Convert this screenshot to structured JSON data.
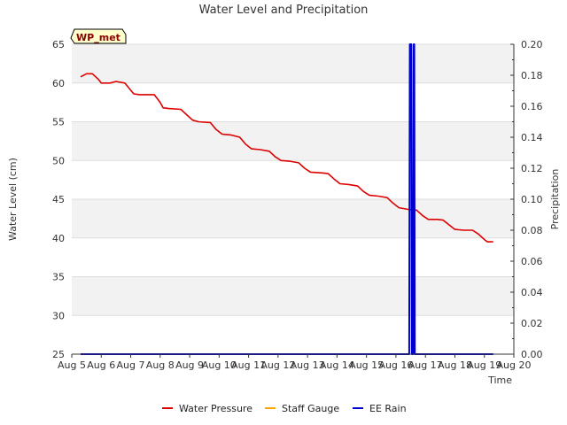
{
  "chart_data": {
    "type": "line",
    "title": "Water Level and Precipitation",
    "badge": "WP_met",
    "xlabel": "Time",
    "ylabel_left": "Water Level (cm)",
    "ylabel_right": "Precipitation",
    "x_ticks": [
      "Aug 5",
      "Aug 6",
      "Aug 7",
      "Aug 8",
      "Aug 9",
      "Aug 10",
      "Aug 11",
      "Aug 12",
      "Aug 13",
      "Aug 14",
      "Aug 15",
      "Aug 16",
      "Aug 17",
      "Aug 18",
      "Aug 19",
      "Aug 20"
    ],
    "xlim": [
      5,
      20
    ],
    "ylim_left": [
      25,
      65
    ],
    "ylim_right": [
      0.0,
      0.2
    ],
    "y_ticks_left": [
      "25",
      "30",
      "35",
      "40",
      "45",
      "50",
      "55",
      "60",
      "65"
    ],
    "y_ticks_right": [
      "0.00",
      "0.02",
      "0.04",
      "0.06",
      "0.08",
      "0.10",
      "0.12",
      "0.14",
      "0.16",
      "0.18",
      "0.20"
    ],
    "grid": true,
    "legend_position": "bottom",
    "colors": {
      "water_pressure": "#dd0000",
      "staff_gauge": "#ffa500",
      "ee_rain": "#0000cc",
      "band": "#f2f2f2",
      "badge_bg": "#ffffcc"
    },
    "series": [
      {
        "name": "Water Pressure",
        "axis": "left",
        "points": [
          [
            5.3,
            60.8
          ],
          [
            5.5,
            61.2
          ],
          [
            5.7,
            61.2
          ],
          [
            5.9,
            60.5
          ],
          [
            6.0,
            60.0
          ],
          [
            6.3,
            60.0
          ],
          [
            6.5,
            60.2
          ],
          [
            6.8,
            60.0
          ],
          [
            6.95,
            59.3
          ],
          [
            7.1,
            58.6
          ],
          [
            7.3,
            58.5
          ],
          [
            7.8,
            58.5
          ],
          [
            8.0,
            57.5
          ],
          [
            8.1,
            56.8
          ],
          [
            8.3,
            56.7
          ],
          [
            8.7,
            56.6
          ],
          [
            8.9,
            55.9
          ],
          [
            9.1,
            55.2
          ],
          [
            9.3,
            55.0
          ],
          [
            9.7,
            54.9
          ],
          [
            9.9,
            54.0
          ],
          [
            10.1,
            53.4
          ],
          [
            10.4,
            53.3
          ],
          [
            10.7,
            53.0
          ],
          [
            10.9,
            52.1
          ],
          [
            11.1,
            51.5
          ],
          [
            11.4,
            51.4
          ],
          [
            11.7,
            51.2
          ],
          [
            11.9,
            50.5
          ],
          [
            12.1,
            50.0
          ],
          [
            12.4,
            49.9
          ],
          [
            12.7,
            49.7
          ],
          [
            12.9,
            49.0
          ],
          [
            13.1,
            48.5
          ],
          [
            13.5,
            48.4
          ],
          [
            13.7,
            48.3
          ],
          [
            13.9,
            47.6
          ],
          [
            14.1,
            47.0
          ],
          [
            14.4,
            46.9
          ],
          [
            14.7,
            46.7
          ],
          [
            14.9,
            46.0
          ],
          [
            15.1,
            45.5
          ],
          [
            15.4,
            45.4
          ],
          [
            15.7,
            45.2
          ],
          [
            15.9,
            44.5
          ],
          [
            16.1,
            43.9
          ],
          [
            16.4,
            43.7
          ],
          [
            16.7,
            43.6
          ],
          [
            16.9,
            42.9
          ],
          [
            17.1,
            42.4
          ],
          [
            17.4,
            42.4
          ],
          [
            17.6,
            42.3
          ],
          [
            17.8,
            41.7
          ],
          [
            18.0,
            41.1
          ],
          [
            18.3,
            41.0
          ],
          [
            18.6,
            41.0
          ],
          [
            18.8,
            40.5
          ],
          [
            19.0,
            39.8
          ],
          [
            19.1,
            39.5
          ],
          [
            19.3,
            39.5
          ]
        ]
      },
      {
        "name": "Staff Gauge",
        "axis": "left",
        "points": []
      },
      {
        "name": "EE Rain",
        "axis": "right",
        "points": [
          [
            5.3,
            0.0
          ],
          [
            16.45,
            0.0
          ],
          [
            16.47,
            0.2
          ],
          [
            16.52,
            0.2
          ],
          [
            16.54,
            0.0
          ],
          [
            16.58,
            0.0
          ],
          [
            16.6,
            0.2
          ],
          [
            16.62,
            0.2
          ],
          [
            16.64,
            0.0
          ],
          [
            19.3,
            0.0
          ]
        ]
      }
    ]
  }
}
